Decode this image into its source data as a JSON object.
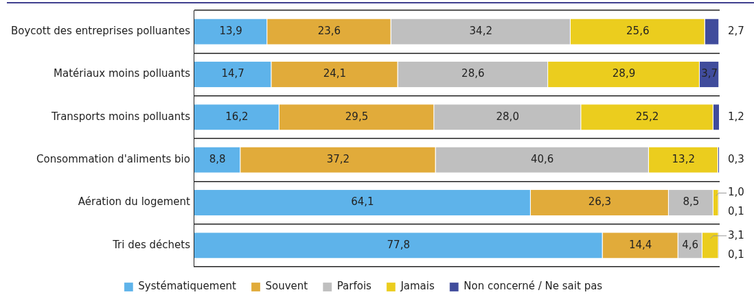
{
  "chart_data": {
    "type": "bar",
    "orientation": "horizontal",
    "stacked": true,
    "grid": "y",
    "legend": "bottom",
    "categories": [
      "Boycott des entreprises polluantes",
      "Matériaux moins polluants",
      "Transports moins polluants",
      "Consommation d'aliments bio",
      "Aération du logement",
      "Tri des déchets"
    ],
    "series": [
      {
        "name": "Systématiquement",
        "color": "#5eb3ea",
        "values": [
          13.9,
          14.7,
          16.2,
          8.8,
          64.1,
          77.8
        ],
        "value_labels": [
          "13,9",
          "14,7",
          "16,2",
          "8,8",
          "64,1",
          "77,8"
        ]
      },
      {
        "name": "Souvent",
        "color": "#e1ab3a",
        "values": [
          23.6,
          24.1,
          29.5,
          37.2,
          26.3,
          14.4
        ],
        "value_labels": [
          "23,6",
          "24,1",
          "29,5",
          "37,2",
          "26,3",
          "14,4"
        ]
      },
      {
        "name": "Parfois",
        "color": "#bfbfbf",
        "values": [
          34.2,
          28.6,
          28.0,
          40.6,
          8.5,
          4.6
        ],
        "value_labels": [
          "34,2",
          "28,6",
          "28,0",
          "40,6",
          "8,5",
          "4,6"
        ]
      },
      {
        "name": "Jamais",
        "color": "#ebcd1e",
        "values": [
          25.6,
          28.9,
          25.2,
          13.2,
          1.0,
          3.1
        ],
        "value_labels": [
          "25,6",
          "28,9",
          "25,2",
          "13,2",
          "1,0",
          "3,1"
        ]
      },
      {
        "name": "Non concerné / Ne sait pas",
        "color": "#404c9c",
        "values": [
          2.7,
          3.7,
          1.2,
          0.3,
          0.1,
          0.1
        ],
        "value_labels": [
          "2,7",
          "3,7",
          "1,2",
          "0,3",
          "0,1",
          "0,1"
        ]
      }
    ]
  }
}
